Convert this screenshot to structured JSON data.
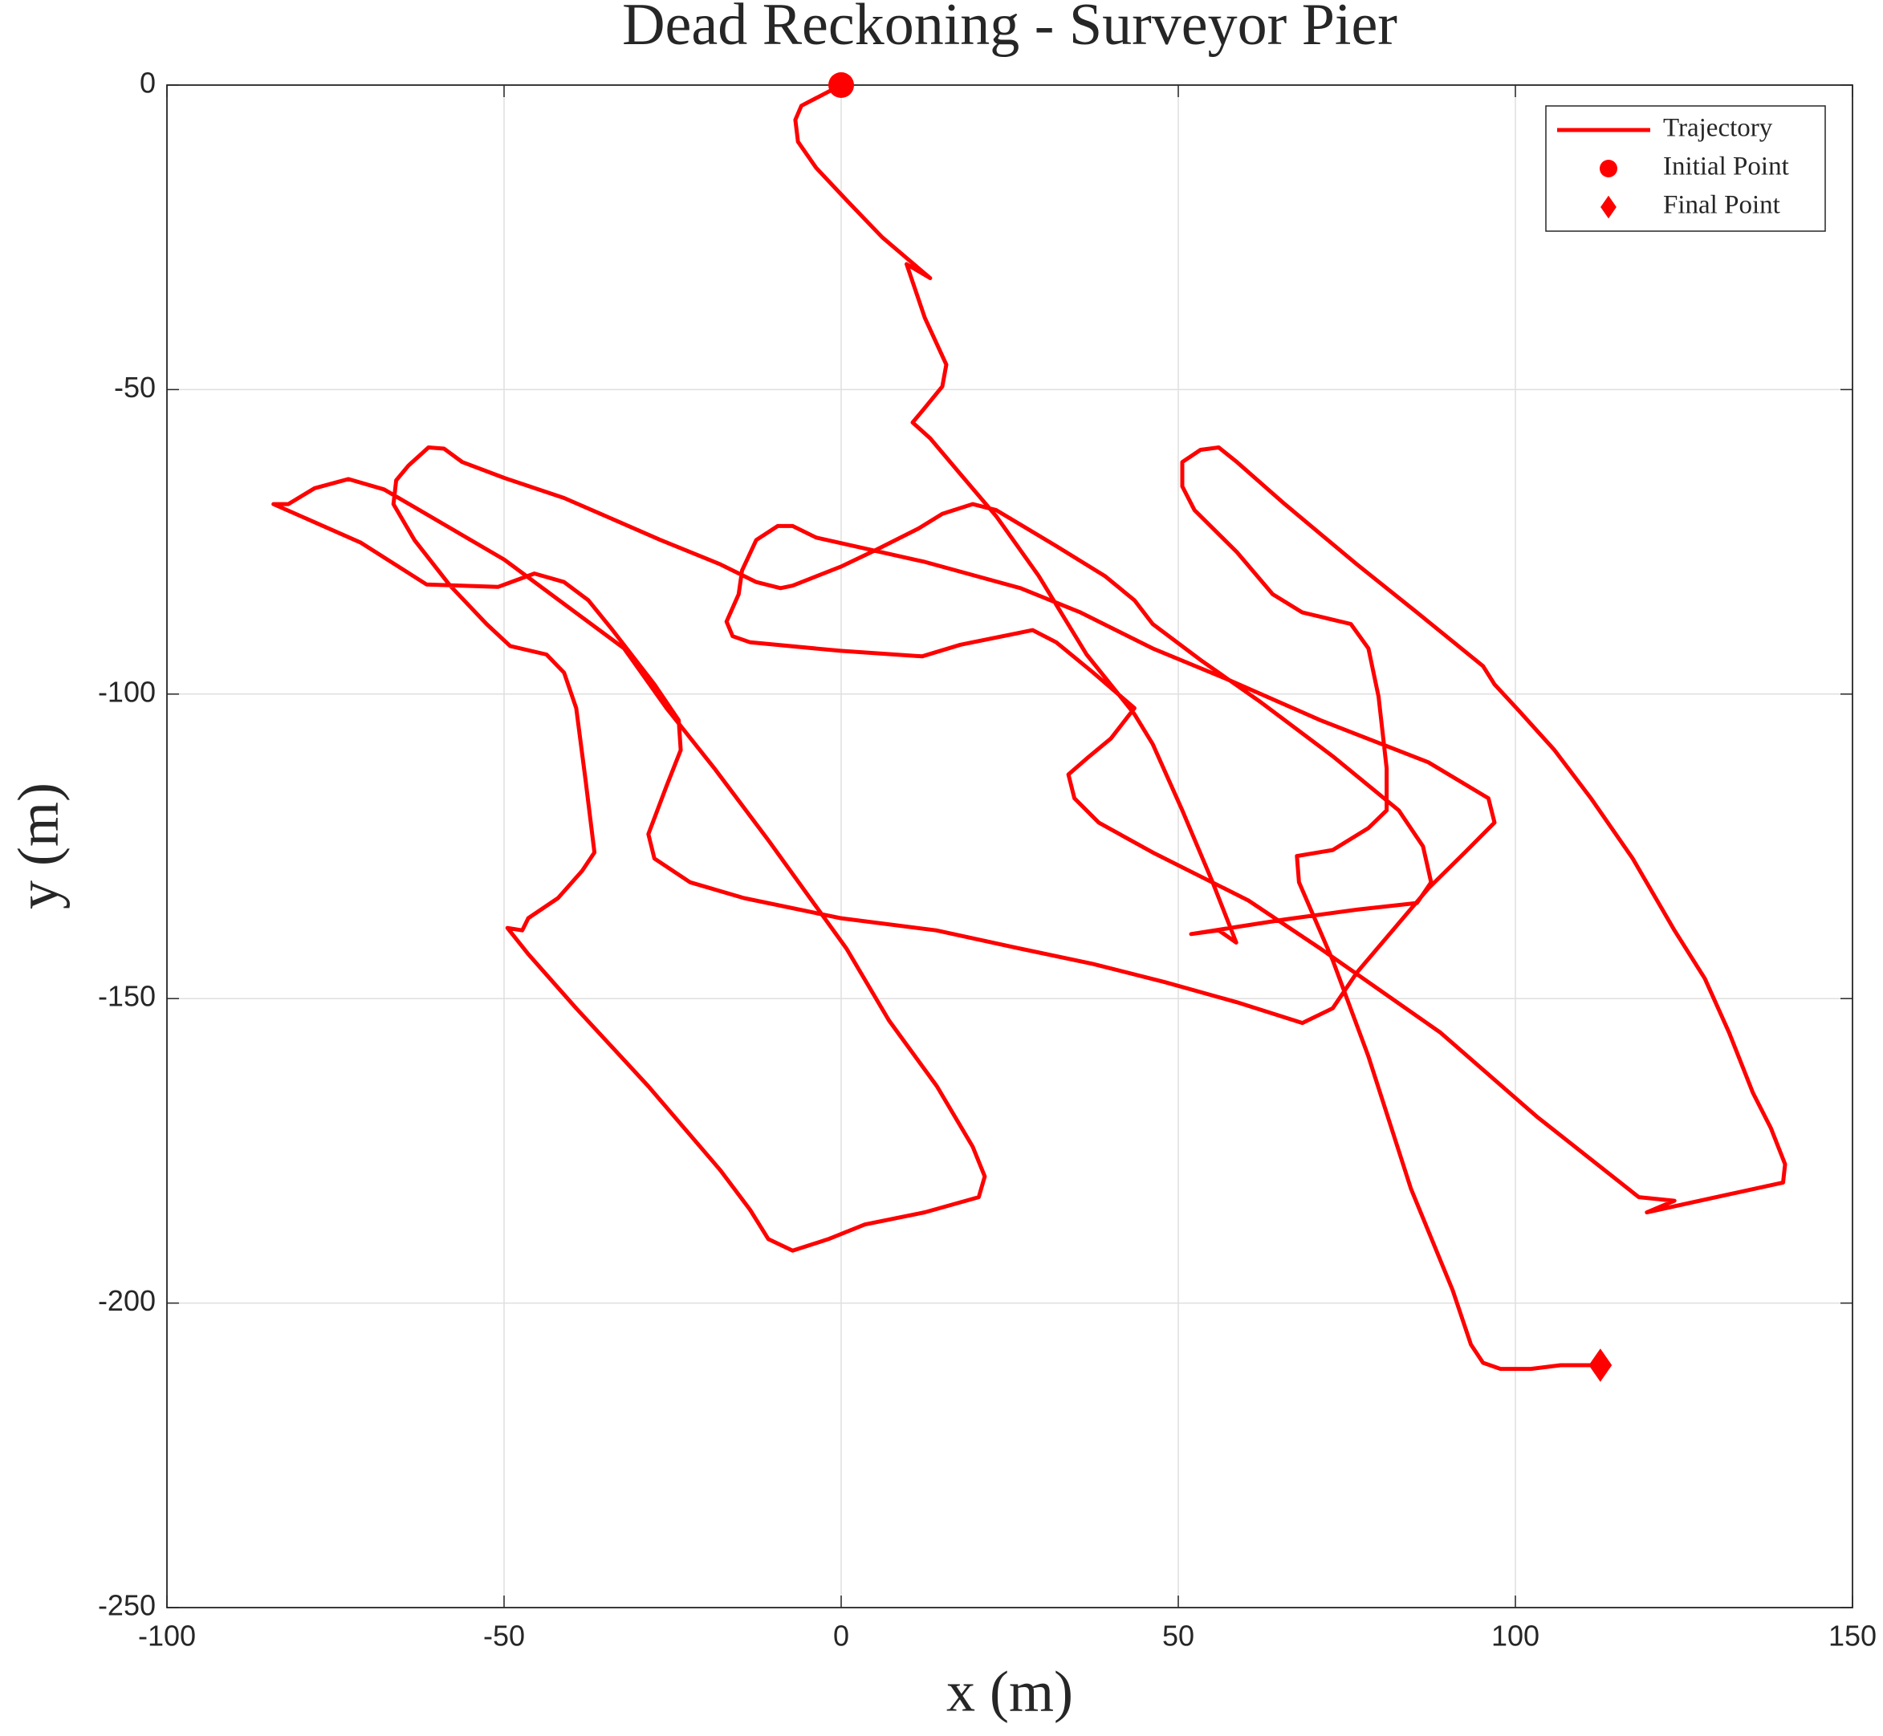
{
  "chart_data": {
    "type": "line",
    "title": "Dead Reckoning - Surveyor Pier",
    "xlabel": "x (m)",
    "ylabel": "y (m)",
    "xlim": [
      -100,
      150
    ],
    "xticks": [
      -100,
      -50,
      0,
      50,
      100,
      150
    ],
    "ylim": [
      -250,
      0
    ],
    "yticks": [
      -250,
      -200,
      -150,
      -100,
      -50,
      0
    ],
    "grid": true,
    "legend": "northeast",
    "series": [
      {
        "name": "Trajectory",
        "color": "#ff0000",
        "marker": "none",
        "x": [
          0,
          -5.9,
          -6.8,
          -6.4,
          -3.7,
          0.8,
          6.1,
          9.7,
          13.2,
          9.7,
          12.4,
          15.6,
          15.0,
          12.4,
          10.6,
          13.2,
          17.7,
          23.0,
          29.3,
          36.4,
          43.5,
          46.2,
          50.6,
          55.1,
          58.6,
          56.0,
          51.9,
          65.8,
          76.5,
          85.4,
          87.5,
          86.3,
          82.7,
          72.9,
          62.2,
          53.3,
          46.2,
          43.5,
          39.1,
          31.9,
          23.0,
          19.5,
          15.0,
          11.5,
          5.2,
          -0.1,
          -7.2,
          -9.0,
          -12.6,
          -17.9,
          -26.8,
          -35.7,
          -41.1,
          -50.0,
          -56.2,
          -58.9,
          -61.2,
          -64.2,
          -66.0,
          -66.4,
          -63.3,
          -58.0,
          -52.6,
          -49.1,
          -43.7,
          -41.1,
          -39.3,
          -37.9,
          -36.6,
          -38.4,
          -42.0,
          -46.4,
          -47.3,
          -49.5,
          -46.4,
          -39.3,
          -28.6,
          -17.9,
          -13.5,
          -10.8,
          -7.2,
          -1.9,
          3.5,
          12.4,
          20.4,
          21.3,
          19.5,
          14.2,
          7.1,
          0.8,
          -3.7,
          -10.8,
          -18.8,
          -25.9,
          -32.2,
          -50.0,
          -67.8,
          -73.1,
          -78.1,
          -82.0,
          -84.2,
          -71.3,
          -61.5,
          -50.9,
          -45.5,
          -41.1,
          -37.5,
          -33.9,
          -27.7,
          -24.1,
          -23.8,
          -25.9,
          -28.6,
          -27.7,
          -22.4,
          -14.4,
          -0.1,
          14.1,
          26.6,
          37.3,
          48.0,
          58.7,
          68.4,
          72.9,
          76.5,
          81.8,
          87.1,
          92.5,
          96.9,
          96.0,
          87.1,
          71.1,
          56.9,
          46.2,
          35.5,
          26.6,
          12.4,
          -3.7,
          -7.2,
          -9.4,
          -12.6,
          -14.7,
          -15.2,
          -17.0,
          -16.1,
          -13.5,
          -0.1,
          12.0,
          17.7,
          26.6,
          28.4,
          31.9,
          37.3,
          43.5,
          40.0,
          36.4,
          33.7,
          34.6,
          38.2,
          46.2,
          60.4,
          71.1,
          80.0,
          88.9,
          103.2,
          118.3,
          123.6,
          119.5,
          139.7,
          140.0,
          137.9,
          135.2,
          131.7,
          128.1,
          123.6,
          117.4,
          111.2,
          105.8,
          100.5,
          96.9,
          95.2,
          85.4,
          76.5,
          65.8,
          58.7,
          56.0,
          53.3,
          50.6,
          50.6,
          52.4,
          58.7,
          64.0,
          68.4,
          75.6,
          78.2,
          79.7,
          80.9,
          80.9,
          78.2,
          72.9,
          67.6,
          67.9,
          72.9,
          78.2,
          84.5,
          90.7,
          93.4,
          95.2,
          97.8,
          102.3,
          106.7,
          112.6
        ],
        "values": [
          0,
          -3.4,
          -5.7,
          -9.3,
          -13.6,
          -18.9,
          -25.0,
          -28.4,
          -31.7,
          -29.4,
          -38.2,
          -45.9,
          -49.5,
          -53.0,
          -55.4,
          -58.0,
          -63.9,
          -70.8,
          -80.6,
          -93.5,
          -103.3,
          -108.2,
          -119.1,
          -130.9,
          -140.8,
          -138.8,
          -139.4,
          -137.0,
          -135.4,
          -134.3,
          -130.9,
          -125.0,
          -119.1,
          -110.2,
          -101.3,
          -94.4,
          -88.5,
          -84.6,
          -80.6,
          -75.7,
          -69.8,
          -68.8,
          -70.4,
          -72.8,
          -76.3,
          -79.1,
          -82.2,
          -82.6,
          -81.6,
          -78.7,
          -74.7,
          -70.4,
          -67.8,
          -64.5,
          -61.9,
          -59.7,
          -59.5,
          -62.5,
          -64.9,
          -68.8,
          -74.7,
          -82.2,
          -88.5,
          -92.1,
          -93.5,
          -96.5,
          -102.3,
          -114.2,
          -126.0,
          -129.0,
          -133.5,
          -136.8,
          -138.8,
          -138.4,
          -142.7,
          -151.6,
          -164.4,
          -178.2,
          -184.7,
          -189.5,
          -191.4,
          -189.5,
          -187.1,
          -185.1,
          -182.6,
          -179.2,
          -174.3,
          -164.4,
          -153.6,
          -141.8,
          -134.9,
          -124.0,
          -112.2,
          -102.3,
          -92.5,
          -77.9,
          -66.4,
          -64.7,
          -66.2,
          -68.8,
          -68.8,
          -75.1,
          -82.0,
          -82.4,
          -80.2,
          -81.6,
          -84.6,
          -89.5,
          -98.4,
          -104.3,
          -109.2,
          -115.1,
          -123.0,
          -127.0,
          -130.9,
          -133.5,
          -136.8,
          -138.8,
          -141.8,
          -144.3,
          -147.3,
          -150.6,
          -154.0,
          -151.6,
          -145.7,
          -138.8,
          -131.9,
          -126.0,
          -121.1,
          -117.1,
          -111.2,
          -104.3,
          -97.4,
          -92.5,
          -86.6,
          -82.6,
          -78.3,
          -74.3,
          -72.4,
          -72.4,
          -74.7,
          -79.7,
          -83.6,
          -88.1,
          -90.5,
          -91.5,
          -92.9,
          -93.8,
          -91.9,
          -89.9,
          -89.5,
          -91.5,
          -96.4,
          -102.3,
          -107.3,
          -110.6,
          -113.2,
          -117.1,
          -121.1,
          -126.0,
          -133.9,
          -141.8,
          -148.7,
          -155.6,
          -169.4,
          -182.6,
          -183.2,
          -185.1,
          -180.2,
          -177.2,
          -171.3,
          -165.4,
          -155.6,
          -146.7,
          -138.8,
          -127.0,
          -117.1,
          -109.2,
          -102.7,
          -98.4,
          -95.4,
          -86.6,
          -78.7,
          -68.8,
          -61.9,
          -59.5,
          -59.9,
          -61.9,
          -65.9,
          -69.8,
          -76.7,
          -83.6,
          -86.6,
          -88.5,
          -92.5,
          -100.4,
          -112.2,
          -119.1,
          -122.0,
          -125.6,
          -126.6,
          -130.9,
          -143.7,
          -159.5,
          -181.2,
          -197.9,
          -206.8,
          -209.8,
          -210.8,
          -210.8,
          -210.2,
          -210.2
        ]
      },
      {
        "name": "Initial Point",
        "color": "#ff0000",
        "marker": "circle",
        "x": [
          0
        ],
        "values": [
          0
        ]
      },
      {
        "name": "Final Point",
        "color": "#ff0000",
        "marker": "diamond",
        "x": [
          112.6
        ],
        "values": [
          -210.2
        ]
      }
    ]
  }
}
